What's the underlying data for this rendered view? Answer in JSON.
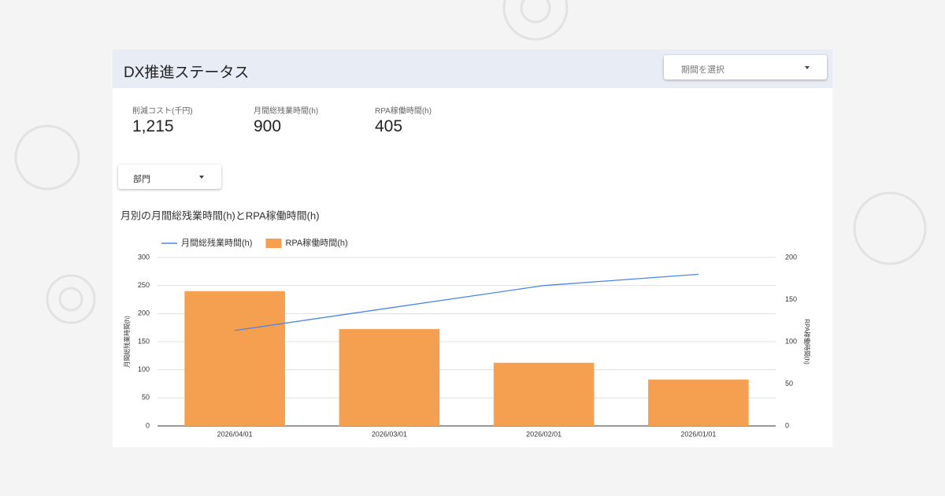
{
  "header": {
    "title": "DX推進ステータス",
    "period_select": "期間を選択"
  },
  "kpis": [
    {
      "label": "削減コスト(千円)",
      "value": "1,215"
    },
    {
      "label": "月間総残業時間(h)",
      "value": "900"
    },
    {
      "label": "RPA稼働時間(h)",
      "value": "405"
    }
  ],
  "filter": "部門",
  "chart_data": {
    "type": "combo",
    "title": "月別の月間総残業時間(h)とRPA稼働時間(h)",
    "categories": [
      "2026/04/01",
      "2026/03/01",
      "2026/02/01",
      "2026/01/01"
    ],
    "series": [
      {
        "name": "月間総残業時間(h)",
        "type": "line",
        "color": "#4a86e8",
        "values": [
          170,
          210,
          250,
          270
        ]
      },
      {
        "name": "RPA稼働時間(h)",
        "type": "bar",
        "axis": "y2",
        "color": "#f4a050",
        "values": [
          160,
          115,
          75,
          55
        ]
      }
    ],
    "ylabel": "月間総残業時間(h)",
    "y2label": "RPA稼働時間(h)",
    "ylim": [
      0,
      300
    ],
    "yticks": [
      0,
      50,
      100,
      150,
      200,
      250,
      300
    ],
    "y2lim": [
      0,
      200
    ],
    "y2ticks": [
      0,
      50,
      100,
      150,
      200
    ],
    "grid": true,
    "legend": "top"
  }
}
